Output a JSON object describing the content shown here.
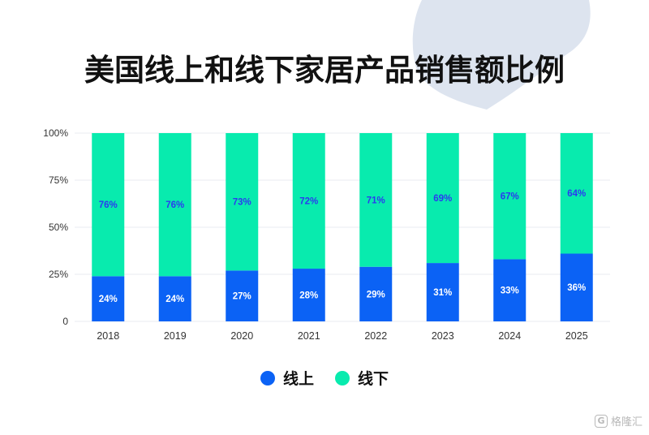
{
  "title": "美国线上和线下家居产品销售额比例",
  "colors": {
    "online": "#0b62f5",
    "offline": "#08ebae",
    "label_online": "#ffffff",
    "label_offline": "#2b3af0",
    "grid": "#e8ebf0",
    "tick": "#333333",
    "deco": "#dde4ef"
  },
  "chart_data": {
    "type": "bar",
    "stacked": true,
    "categories": [
      "2018",
      "2019",
      "2020",
      "2021",
      "2022",
      "2023",
      "2024",
      "2025"
    ],
    "series": [
      {
        "name": "线上",
        "values": [
          24,
          24,
          27,
          28,
          29,
          31,
          33,
          36
        ],
        "labels": [
          "24%",
          "24%",
          "27%",
          "28%",
          "29%",
          "31%",
          "33%",
          "36%"
        ]
      },
      {
        "name": "线下",
        "values": [
          76,
          76,
          73,
          72,
          71,
          69,
          67,
          64
        ],
        "labels": [
          "76%",
          "76%",
          "73%",
          "72%",
          "71%",
          "69%",
          "67%",
          "64%"
        ]
      }
    ],
    "yticks": [
      "0",
      "25%",
      "50%",
      "75%",
      "100%"
    ],
    "ylim": [
      0,
      100
    ],
    "grid": true,
    "legend_position": "bottom-center"
  },
  "watermark": {
    "text": "格隆汇",
    "icon": "gelonghui-logo-icon"
  }
}
